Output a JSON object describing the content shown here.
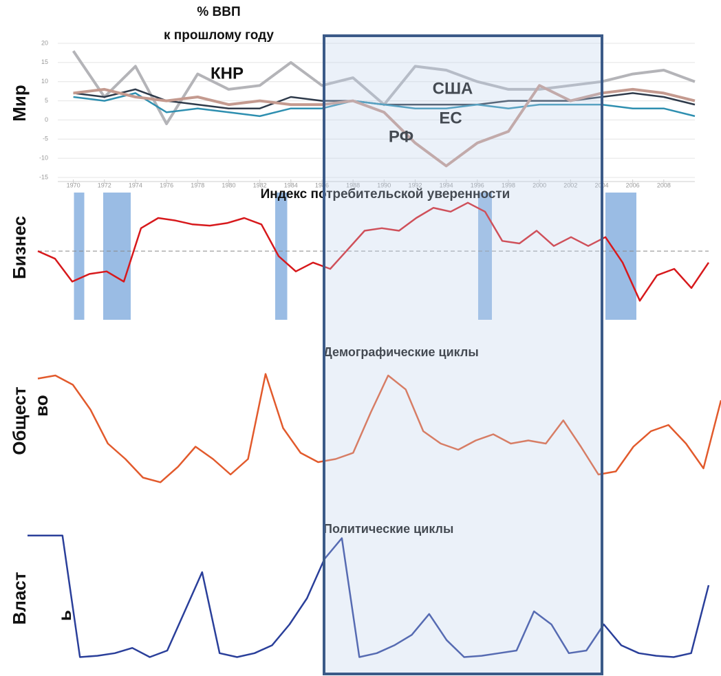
{
  "chart_data": [
    {
      "type": "line",
      "subtitle": [
        "% ВВП",
        "к прошлому году"
      ],
      "y_label": [
        "Мир"
      ],
      "x": [
        1970,
        1972,
        1974,
        1976,
        1978,
        1980,
        1982,
        1984,
        1986,
        1988,
        1990,
        1992,
        1994,
        1996,
        1998,
        2000,
        2002,
        2004,
        2006,
        2008,
        2010
      ],
      "xlim": [
        1969,
        2010
      ],
      "xticks": [
        1970,
        1972,
        1974,
        1976,
        1978,
        1980,
        1982,
        1984,
        1986,
        1988,
        1990,
        1992,
        1994,
        1996,
        1998,
        2000,
        2002,
        2004,
        2006,
        2008
      ],
      "ylim": [
        -15,
        20
      ],
      "yticks": [
        -15,
        -10,
        -5,
        0,
        5,
        10,
        15,
        20
      ],
      "grid": true,
      "series": [
        {
          "name": "КНР",
          "color": "#b4b4b8",
          "values": [
            18,
            6,
            14,
            -1,
            12,
            8,
            9,
            15,
            9,
            11,
            4,
            14,
            13,
            10,
            8,
            8,
            9,
            10,
            12,
            13,
            10
          ]
        },
        {
          "name": "США",
          "color": "#2e3a4a",
          "values": [
            7,
            6,
            8,
            5,
            4,
            3,
            3,
            6,
            5,
            5,
            4,
            4,
            4,
            4,
            5,
            5,
            5,
            6,
            7,
            6,
            4
          ]
        },
        {
          "name": "ЕС",
          "color": "#2e8fb0",
          "values": [
            6,
            5,
            7,
            2,
            3,
            2,
            1,
            3,
            3,
            5,
            4,
            3,
            3,
            4,
            3,
            4,
            4,
            4,
            3,
            3,
            1
          ]
        },
        {
          "name": "РФ",
          "color": "#c49a8f",
          "values": [
            7,
            8,
            6,
            5,
            6,
            4,
            5,
            4,
            4,
            5,
            2,
            -6,
            -12,
            -6,
            -3,
            9,
            5,
            7,
            8,
            7,
            5
          ]
        }
      ]
    },
    {
      "type": "line",
      "title": "Индекс потребительской уверенности",
      "y_label": [
        "Бизнес"
      ],
      "ylim": [
        0,
        100
      ],
      "color": "#d7191c",
      "reference": 54,
      "bands": [
        [
          2.1,
          2.7
        ],
        [
          3.8,
          5.4
        ],
        [
          13.8,
          14.5
        ],
        [
          25.6,
          26.4
        ],
        [
          33.0,
          34.8
        ]
      ],
      "values": [
        54,
        48,
        30,
        36,
        38,
        30,
        72,
        80,
        78,
        75,
        74,
        76,
        80,
        75,
        50,
        38,
        45,
        40,
        55,
        70,
        72,
        70,
        80,
        88,
        85,
        92,
        85,
        62,
        60,
        70,
        58,
        65,
        58,
        65,
        45,
        15,
        35,
        40,
        25,
        45
      ]
    },
    {
      "type": "line",
      "title": "Демографические циклы",
      "y_label": [
        "Общест",
        "во"
      ],
      "ylim": [
        0,
        100
      ],
      "color": "#e25a2c",
      "values": [
        82,
        84,
        78,
        62,
        40,
        30,
        18,
        15,
        25,
        38,
        30,
        20,
        30,
        85,
        50,
        34,
        28,
        30,
        34,
        60,
        84,
        75,
        48,
        40,
        36,
        42,
        46,
        40,
        42,
        40,
        55,
        38,
        20,
        22,
        38,
        48,
        52,
        40,
        24,
        68
      ]
    },
    {
      "type": "line",
      "title": "Политические циклы",
      "y_label": [
        "Власт",
        "ь"
      ],
      "ylim": [
        0,
        100
      ],
      "color": "#2a3f9a",
      "values": [
        98,
        98,
        98,
        5,
        6,
        8,
        12,
        5,
        10,
        40,
        70,
        8,
        5,
        8,
        14,
        30,
        50,
        80,
        96,
        5,
        8,
        14,
        22,
        38,
        18,
        5,
        6,
        8,
        10,
        40,
        30,
        8,
        10,
        30,
        14,
        8,
        6,
        5,
        8,
        60
      ]
    }
  ]
}
